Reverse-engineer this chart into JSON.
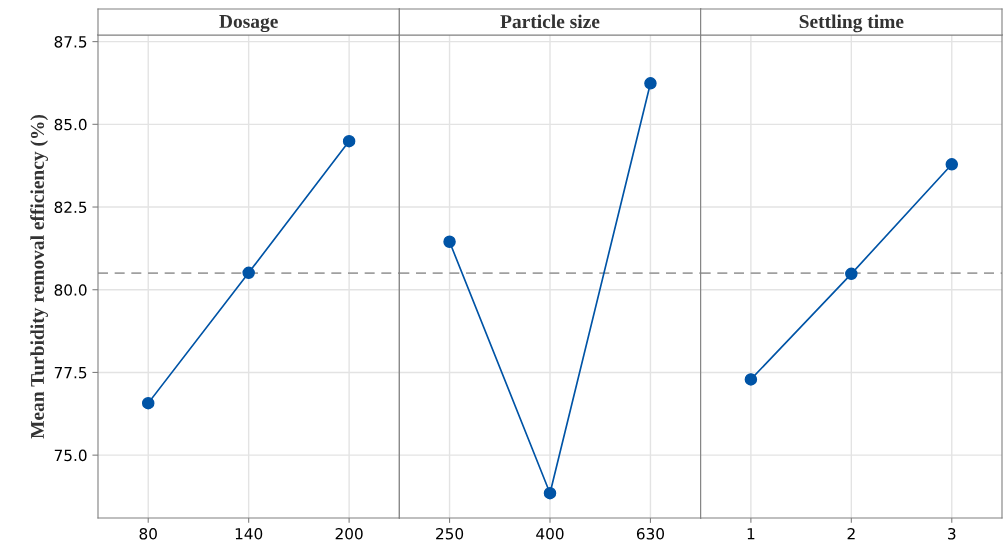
{
  "chart_data": [
    {
      "type": "line",
      "title": "Dosage",
      "ylabel": "Mean Turbidity removal efficiency (%)",
      "categories": [
        "80",
        "140",
        "200"
      ],
      "values": [
        76.57,
        80.51,
        84.49
      ],
      "color": "#0054a6",
      "marker": "circle",
      "ylim": [
        73.1,
        87.7
      ],
      "yticks": [
        {
          "value": 75,
          "label": "75.0"
        },
        {
          "value": 77.5,
          "label": "77.5"
        },
        {
          "value": 80,
          "label": "80.0"
        },
        {
          "value": 82.5,
          "label": "82.5"
        },
        {
          "value": 85,
          "label": "85.0"
        },
        {
          "value": 87.5,
          "label": "87.5"
        }
      ],
      "grid": true,
      "ref_lines": [
        {
          "axis": "y",
          "value": 80.5,
          "color": "#a0a0a0",
          "line_style": "dashed"
        }
      ]
    },
    {
      "type": "line",
      "title": "Particle size",
      "categories": [
        "250",
        "400",
        "630"
      ],
      "values": [
        81.45,
        73.85,
        86.24
      ],
      "color": "#0054a6",
      "marker": "circle",
      "ylim": [
        73.1,
        87.7
      ],
      "yticks": [
        75,
        77.5,
        80,
        82.5,
        85,
        87.5
      ],
      "grid": true,
      "tick_labels": "x",
      "ref_lines": [
        {
          "axis": "y",
          "value": 80.5,
          "color": "#a0a0a0",
          "line_style": "dashed"
        }
      ]
    },
    {
      "type": "line",
      "title": "Settling time",
      "categories": [
        "1",
        "2",
        "3"
      ],
      "values": [
        77.29,
        80.48,
        83.79
      ],
      "color": "#0054a6",
      "marker": "circle",
      "ylim": [
        73.1,
        87.7
      ],
      "yticks": [
        75,
        77.5,
        80,
        82.5,
        85,
        87.5
      ],
      "grid": true,
      "tick_labels": "x",
      "ref_lines": [
        {
          "axis": "y",
          "value": 80.5,
          "color": "#a0a0a0",
          "line_style": "dashed"
        }
      ]
    }
  ]
}
